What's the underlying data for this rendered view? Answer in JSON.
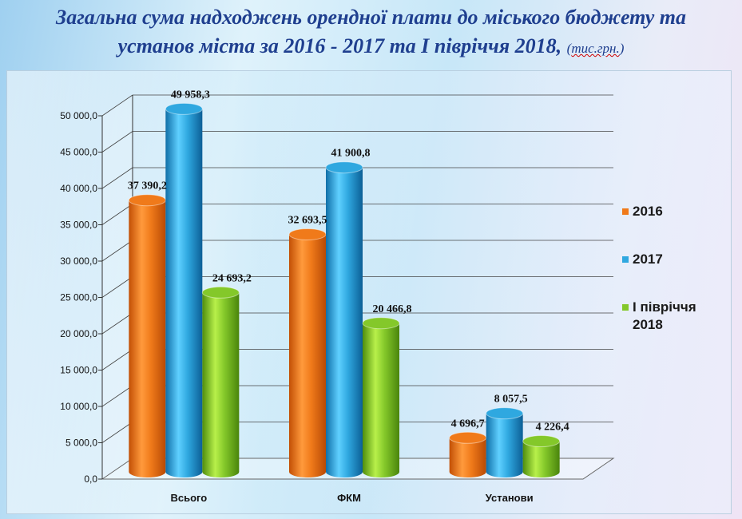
{
  "page": {
    "title_line1": "Загальна сума надходжень орендної плати до міського бюджету та",
    "title_line2": "установ міста за 2016 - 2017 та І півріччя 2018,",
    "title_unit": "тис.грн."
  },
  "chart_data": {
    "type": "bar",
    "style": "3d-cylinder",
    "categories": [
      "Всього",
      "ФКМ",
      "Установи"
    ],
    "series": [
      {
        "name": "2016",
        "values": [
          37390.2,
          32693.5,
          4696.7
        ],
        "labels": [
          "37 390,2",
          "32 693,5",
          "4 696,7"
        ],
        "color": "#f07a1a"
      },
      {
        "name": "2017",
        "values": [
          49958.3,
          41900.8,
          8057.5
        ],
        "labels": [
          "49 958,3",
          "41 900,8",
          "8 057,5"
        ],
        "color": "#2fa8e0"
      },
      {
        "name": "І півріччя 2018",
        "values": [
          24693.2,
          20466.8,
          4226.4
        ],
        "labels": [
          "24 693,2",
          "20 466,8",
          "4 226,4"
        ],
        "color": "#84c82a"
      }
    ],
    "ylim": [
      0,
      50000
    ],
    "yticks": [
      "0,0",
      "5 000,0",
      "10 000,0",
      "15 000,0",
      "20 000,0",
      "25 000,0",
      "30 000,0",
      "35 000,0",
      "40 000,0",
      "45 000,0",
      "50 000,0"
    ],
    "grid": true,
    "legend_position": "right",
    "legend": [
      "2016",
      "2017",
      "І півріччя",
      "2018"
    ]
  }
}
